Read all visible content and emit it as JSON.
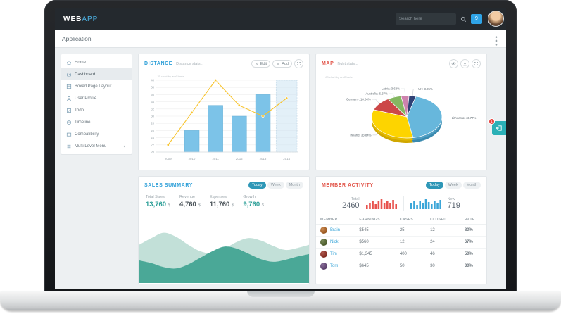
{
  "navbar": {
    "logo_web": "WEB",
    "logo_app": "APP",
    "search_placeholder": "Search here",
    "notifications_count": "9"
  },
  "appbar": {
    "title": "Application"
  },
  "sidebar": {
    "items": [
      {
        "label": "Home",
        "icon": "home",
        "active": false
      },
      {
        "label": "Dashboard",
        "icon": "dashboard",
        "active": true
      },
      {
        "label": "Boxed Page Layout",
        "icon": "boxed",
        "active": false
      },
      {
        "label": "User Profile",
        "icon": "user",
        "active": false
      },
      {
        "label": "Todo",
        "icon": "todo",
        "active": false
      },
      {
        "label": "Timeline",
        "icon": "timeline",
        "active": false
      },
      {
        "label": "Compatibility",
        "icon": "compat",
        "active": false
      },
      {
        "label": "Multi Level Menu",
        "icon": "multi",
        "active": false,
        "has_submenu": true
      }
    ]
  },
  "distance": {
    "title": "DISTANCE",
    "subtitle": "Distance stats...",
    "edit_label": "Edit",
    "add_label": "Add",
    "watermark": "JS chart by amCharts",
    "chart_data": {
      "type": "bar",
      "categories": [
        "2009",
        "2010",
        "2011",
        "2012",
        "2013",
        "2014"
      ],
      "series": [
        {
          "name": "distance-bars",
          "type": "bar",
          "color": "#7cc3e8",
          "values": [
            null,
            26,
            33,
            30,
            36,
            null
          ]
        },
        {
          "name": "distance-line",
          "type": "line",
          "color": "#f8c32a",
          "values": [
            22,
            31,
            40,
            33,
            30,
            35
          ]
        }
      ],
      "ylim": [
        20,
        40
      ],
      "ytick_step": 2,
      "highlight_category": "2014"
    }
  },
  "map": {
    "title": "MAP",
    "subtitle": "flight stats...",
    "watermark": "JS chart by amCharts",
    "chart_data": {
      "type": "pie",
      "slices": [
        {
          "name": "Lithuania",
          "pct": 43.77,
          "color": "#67b7dc"
        },
        {
          "name": "Ireland",
          "pct": 33.84,
          "color": "#fdd400"
        },
        {
          "name": "Germany",
          "pct": 10.84,
          "color": "#cc4748"
        },
        {
          "name": "Australia",
          "pct": 6.37,
          "color": "#84b761"
        },
        {
          "name": "Latvia",
          "pct": 3.68,
          "color": "#cd82ad"
        },
        {
          "name": "UK",
          "pct": 3.25,
          "color": "#2f4074"
        }
      ]
    }
  },
  "sales": {
    "title": "SALES SUMMARY",
    "range_options": [
      "Today",
      "Week",
      "Month"
    ],
    "active_range": "Today",
    "stats": [
      {
        "label": "Total Sales",
        "value": "13,760",
        "unit": "$",
        "color": "#2fa099"
      },
      {
        "label": "Revenue",
        "value": "4,760",
        "unit": "$",
        "color": "#4a5258"
      },
      {
        "label": "Expenses",
        "value": "11,760",
        "unit": "$",
        "color": "#4a5258"
      },
      {
        "label": "Growth",
        "value": "9,760",
        "unit": "$",
        "color": "#2fa099"
      }
    ],
    "chart_data": {
      "type": "area",
      "series": [
        {
          "name": "outer-wave",
          "color": "#c2e0d8",
          "values": [
            0.58,
            0.68,
            0.76,
            0.7,
            0.58,
            0.48,
            0.45,
            0.52,
            0.62,
            0.68,
            0.64,
            0.56,
            0.5,
            0.53,
            0.58
          ]
        },
        {
          "name": "inner-wave",
          "color": "#4aa897",
          "values": [
            0.34,
            0.3,
            0.24,
            0.22,
            0.28,
            0.38,
            0.48,
            0.55,
            0.52,
            0.44,
            0.36,
            0.32,
            0.35,
            0.4,
            0.44
          ]
        }
      ]
    }
  },
  "members": {
    "title": "MEMBER ACTIVITY",
    "range_options": [
      "Today",
      "Week",
      "Month"
    ],
    "active_range": "Today",
    "summary": [
      {
        "label": "Total",
        "value": "2460",
        "color": "#e8534e",
        "bars": [
          6,
          9,
          12,
          7,
          11,
          14,
          8,
          12,
          9,
          13,
          7
        ]
      },
      {
        "label": "New",
        "value": "719",
        "color": "#3ba6d8",
        "bars": [
          8,
          11,
          6,
          12,
          9,
          14,
          10,
          7,
          12,
          9,
          13
        ]
      }
    ],
    "table": {
      "headers": [
        "MEMBER",
        "EARNINGS",
        "CASES",
        "CLOSED",
        "RATE"
      ],
      "rows": [
        {
          "name": "Brain",
          "earnings": "$545",
          "cases": "25",
          "closed": "12",
          "rate": "80%"
        },
        {
          "name": "Nick",
          "earnings": "$560",
          "cases": "12",
          "closed": "24",
          "rate": "67%"
        },
        {
          "name": "Tim",
          "earnings": "$1,345",
          "cases": "400",
          "closed": "46",
          "rate": "50%"
        },
        {
          "name": "Tom",
          "earnings": "$645",
          "cases": "50",
          "closed": "30",
          "rate": "30%"
        }
      ]
    }
  },
  "side_toggle": {
    "badge": "1",
    "color": "#2bb0b6"
  }
}
